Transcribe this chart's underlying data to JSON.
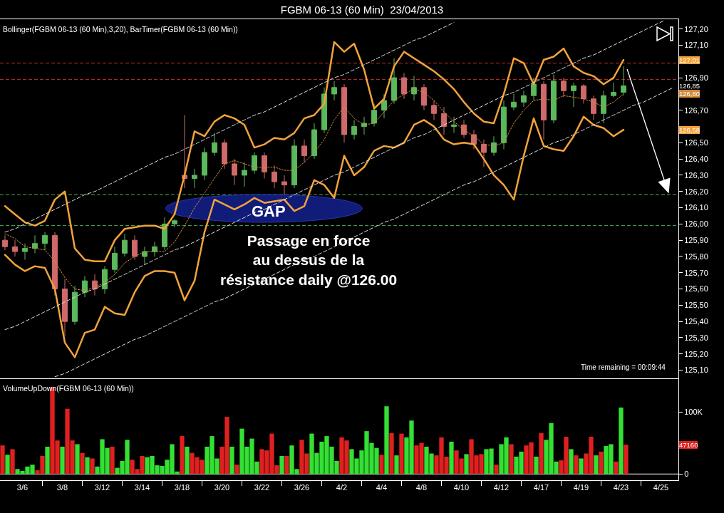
{
  "chart_data": [
    {
      "type": "candlestick",
      "title": "FGBM 06-13 (60 Min)  23/04/2013",
      "subtitle": "Bollinger(FGBM 06-13 (60 Min),3,20), BarTimer(FGBM 06-13 (60 Min))",
      "categories": [
        null,
        null,
        null,
        null,
        null,
        null,
        null,
        null,
        null,
        null,
        null,
        null,
        null,
        null,
        null,
        null,
        null,
        null,
        null,
        null,
        null,
        null,
        null,
        null,
        null,
        null,
        null,
        null,
        null,
        null,
        null,
        null,
        null,
        null,
        null,
        null,
        null,
        null,
        null,
        null,
        null,
        null,
        null,
        null,
        null,
        null,
        null,
        null,
        null,
        null,
        null,
        null,
        null,
        null,
        null,
        null,
        null,
        null,
        null,
        null,
        null,
        null,
        null,
        null,
        null,
        null,
        null,
        null
      ],
      "ohlc": [
        [
          125.9,
          125.93,
          125.84,
          125.86
        ],
        [
          125.86,
          125.9,
          125.8,
          125.83
        ],
        [
          125.83,
          125.88,
          125.78,
          125.85
        ],
        [
          125.85,
          125.93,
          125.82,
          125.88
        ],
        [
          125.88,
          125.95,
          125.84,
          125.93
        ],
        [
          125.93,
          125.95,
          125.56,
          125.6
        ],
        [
          125.6,
          125.66,
          125.31,
          125.4
        ],
        [
          125.4,
          125.62,
          125.38,
          125.58
        ],
        [
          125.58,
          125.68,
          125.55,
          125.65
        ],
        [
          125.65,
          125.69,
          125.56,
          125.6
        ],
        [
          125.6,
          125.74,
          125.57,
          125.72
        ],
        [
          125.72,
          125.86,
          125.7,
          125.82
        ],
        [
          125.82,
          125.94,
          125.8,
          125.9
        ],
        [
          125.9,
          125.93,
          125.78,
          125.8
        ],
        [
          125.8,
          125.86,
          125.75,
          125.83
        ],
        [
          125.83,
          125.89,
          125.8,
          125.86
        ],
        [
          125.86,
          126.04,
          125.84,
          126.0
        ],
        [
          126.0,
          126.03,
          125.98,
          126.02
        ],
        [
          126.3,
          126.67,
          126.22,
          126.28
        ],
        [
          126.28,
          126.34,
          126.22,
          126.3
        ],
        [
          126.3,
          126.47,
          126.27,
          126.44
        ],
        [
          126.44,
          126.56,
          126.42,
          126.5
        ],
        [
          126.5,
          126.52,
          126.34,
          126.37
        ],
        [
          126.37,
          126.4,
          126.24,
          126.3
        ],
        [
          126.3,
          126.38,
          126.23,
          126.33
        ],
        [
          126.33,
          126.44,
          126.31,
          126.42
        ],
        [
          126.42,
          126.44,
          126.28,
          126.32
        ],
        [
          126.32,
          126.36,
          126.22,
          126.26
        ],
        [
          126.26,
          126.3,
          126.18,
          126.24
        ],
        [
          126.24,
          126.52,
          126.22,
          126.48
        ],
        [
          126.48,
          126.52,
          126.38,
          126.42
        ],
        [
          126.42,
          126.62,
          126.4,
          126.58
        ],
        [
          126.58,
          126.84,
          126.56,
          126.8
        ],
        [
          126.8,
          126.88,
          126.76,
          126.84
        ],
        [
          126.84,
          126.86,
          126.5,
          126.55
        ],
        [
          126.55,
          126.64,
          126.52,
          126.6
        ],
        [
          126.6,
          126.66,
          126.55,
          126.62
        ],
        [
          126.62,
          126.74,
          126.6,
          126.7
        ],
        [
          126.7,
          126.8,
          126.65,
          126.76
        ],
        [
          126.76,
          127.02,
          126.74,
          126.9
        ],
        [
          126.9,
          126.93,
          126.77,
          126.8
        ],
        [
          126.8,
          126.91,
          126.76,
          126.84
        ],
        [
          126.84,
          126.86,
          126.7,
          126.73
        ],
        [
          126.73,
          126.76,
          126.64,
          126.68
        ],
        [
          126.68,
          126.72,
          126.55,
          126.6
        ],
        [
          126.6,
          126.66,
          126.56,
          126.61
        ],
        [
          126.61,
          126.64,
          126.53,
          126.55
        ],
        [
          126.55,
          126.58,
          126.46,
          126.49
        ],
        [
          126.49,
          126.52,
          126.35,
          126.44
        ],
        [
          126.44,
          126.54,
          126.42,
          126.5
        ],
        [
          126.5,
          126.76,
          126.46,
          126.72
        ],
        [
          126.72,
          126.8,
          126.7,
          126.75
        ],
        [
          126.75,
          126.82,
          126.72,
          126.79
        ],
        [
          126.79,
          126.9,
          126.76,
          126.86
        ],
        [
          126.86,
          126.88,
          126.52,
          126.64
        ],
        [
          126.64,
          126.92,
          126.62,
          126.88
        ],
        [
          126.88,
          126.9,
          126.78,
          126.82
        ],
        [
          126.82,
          126.87,
          126.72,
          126.85
        ],
        [
          126.85,
          126.86,
          126.74,
          126.77
        ],
        [
          126.77,
          126.79,
          126.64,
          126.68
        ],
        [
          126.68,
          126.82,
          126.62,
          126.79
        ],
        [
          126.79,
          126.87,
          126.78,
          126.81
        ],
        [
          126.81,
          126.97,
          126.79,
          126.85
        ],
        null,
        null,
        null,
        null,
        null
      ],
      "colors": [
        "#d06a6a",
        "#d06a6a",
        "#5cb85c",
        "#5cb85c",
        "#5cb85c",
        "#d06a6a",
        "#d06a6a",
        "#5cb85c",
        "#5cb85c",
        "#d06a6a",
        "#5cb85c",
        "#5cb85c",
        "#5cb85c",
        "#d06a6a",
        "#5cb85c",
        "#5cb85c",
        "#5cb85c",
        "#5cb85c",
        "#d06a6a",
        "#5cb85c",
        "#5cb85c",
        "#5cb85c",
        "#d06a6a",
        "#d06a6a",
        "#5cb85c",
        "#5cb85c",
        "#d06a6a",
        "#d06a6a",
        "#d06a6a",
        "#5cb85c",
        "#d06a6a",
        "#5cb85c",
        "#5cb85c",
        "#5cb85c",
        "#d06a6a",
        "#5cb85c",
        "#5cb85c",
        "#5cb85c",
        "#5cb85c",
        "#5cb85c",
        "#d06a6a",
        "#5cb85c",
        "#d06a6a",
        "#d06a6a",
        "#d06a6a",
        "#5cb85c",
        "#d06a6a",
        "#d06a6a",
        "#d06a6a",
        "#5cb85c",
        "#5cb85c",
        "#5cb85c",
        "#5cb85c",
        "#5cb85c",
        "#d06a6a",
        "#5cb85c",
        "#d06a6a",
        "#5cb85c",
        "#d06a6a",
        "#d06a6a",
        "#5cb85c",
        "#5cb85c",
        "#5cb85c",
        null,
        null,
        null,
        null,
        null
      ],
      "series": [
        {
          "type": "line",
          "color": "#f2a33a",
          "line_style": "solid",
          "values": [
            126.11,
            126.06,
            126.01,
            125.99,
            126.02,
            126.15,
            126.2,
            125.85,
            125.78,
            125.77,
            125.77,
            125.9,
            125.97,
            125.98,
            125.99,
            125.99,
            125.97,
            126.06,
            126.3,
            126.57,
            126.54,
            126.63,
            126.67,
            126.65,
            126.61,
            126.47,
            126.49,
            126.53,
            126.52,
            126.56,
            126.65,
            126.67,
            126.74,
            127.12,
            127.06,
            127.11,
            126.95,
            126.71,
            126.77,
            126.97,
            127.06,
            127.02,
            126.98,
            126.94,
            126.89,
            126.83,
            126.75,
            126.68,
            126.63,
            126.62,
            126.8,
            127.02,
            126.99,
            126.86,
            127.01,
            127.03,
            127.08,
            126.97,
            126.93,
            126.91,
            126.86,
            126.9,
            127.01,
            null,
            null,
            null,
            null,
            null
          ]
        },
        {
          "type": "line",
          "color": "#d08a36",
          "line_style": "dotted",
          "values": [
            125.94,
            125.91,
            125.86,
            125.85,
            125.84,
            125.77,
            125.67,
            125.6,
            125.59,
            125.61,
            125.64,
            125.69,
            125.76,
            125.8,
            125.83,
            125.83,
            125.83,
            125.89,
            125.99,
            126.1,
            126.19,
            126.28,
            126.37,
            126.39,
            126.37,
            126.35,
            126.35,
            126.35,
            126.33,
            126.33,
            126.38,
            126.44,
            126.52,
            126.64,
            126.72,
            126.65,
            126.61,
            126.62,
            126.69,
            126.76,
            126.8,
            126.83,
            126.81,
            126.76,
            126.69,
            126.63,
            126.58,
            126.54,
            126.49,
            126.48,
            126.5,
            126.62,
            126.7,
            126.76,
            126.77,
            126.76,
            126.79,
            126.78,
            126.77,
            126.75,
            126.72,
            126.75,
            126.8,
            null,
            null,
            null,
            null,
            null
          ]
        },
        {
          "type": "line",
          "color": "#f2a33a",
          "line_style": "solid",
          "values": [
            125.81,
            125.75,
            125.71,
            125.74,
            125.73,
            125.6,
            125.27,
            125.18,
            125.33,
            125.35,
            125.49,
            125.45,
            125.44,
            125.58,
            125.68,
            125.71,
            125.71,
            125.7,
            125.53,
            125.65,
            125.95,
            126.15,
            126.12,
            126.09,
            126.12,
            126.16,
            126.13,
            126.14,
            126.15,
            126.08,
            126.11,
            126.27,
            126.24,
            126.16,
            126.42,
            126.3,
            126.35,
            126.45,
            126.48,
            126.47,
            126.5,
            126.61,
            126.64,
            126.6,
            126.52,
            126.49,
            126.5,
            126.49,
            126.4,
            126.3,
            126.24,
            126.15,
            126.42,
            126.65,
            126.48,
            126.46,
            126.45,
            126.54,
            126.66,
            126.61,
            126.59,
            126.54,
            126.58,
            null,
            null,
            null,
            null,
            null
          ]
        },
        {
          "type": "line",
          "color": "#d9d9d9",
          "line_style": "dashed",
          "values": [
            125.95,
            125.97,
            126.0,
            126.03,
            126.06,
            126.09,
            126.12,
            126.15,
            126.18,
            126.2,
            126.23,
            126.26,
            126.29,
            126.32,
            126.35,
            126.38,
            126.41,
            126.43,
            126.46,
            126.49,
            126.52,
            126.55,
            126.58,
            126.61,
            126.64,
            126.67,
            126.69,
            126.72,
            126.75,
            126.78,
            126.81,
            126.84,
            126.87,
            126.9,
            126.92,
            126.95,
            126.98,
            127.01,
            127.04,
            127.07,
            127.1,
            127.13,
            127.15,
            127.18,
            127.21,
            127.24,
            null,
            null,
            null,
            null,
            null,
            null,
            null,
            null,
            null,
            null,
            null,
            null,
            null,
            null,
            null,
            null,
            null,
            null,
            null,
            null,
            null,
            null
          ]
        },
        {
          "type": "line",
          "color": "#d9d9d9",
          "line_style": "dashed",
          "values": [
            125.35,
            125.37,
            125.4,
            125.43,
            125.46,
            125.49,
            125.52,
            125.55,
            125.58,
            125.6,
            125.63,
            125.66,
            125.69,
            125.72,
            125.75,
            125.78,
            125.81,
            125.84,
            125.86,
            125.89,
            125.92,
            125.95,
            125.98,
            126.01,
            126.04,
            126.07,
            126.09,
            126.12,
            126.15,
            126.18,
            126.21,
            126.24,
            126.27,
            126.3,
            126.32,
            126.35,
            126.38,
            126.41,
            126.44,
            126.47,
            126.5,
            126.53,
            126.55,
            126.58,
            126.61,
            126.64,
            126.67,
            126.7,
            126.73,
            126.76,
            126.79,
            126.81,
            126.84,
            126.87,
            126.9,
            126.93,
            126.96,
            126.99,
            127.02,
            127.04,
            127.07,
            127.1,
            127.13,
            127.16,
            127.19,
            127.22,
            127.25,
            null
          ]
        },
        {
          "type": "line",
          "color": "#d9d9d9",
          "line_style": "dashed",
          "values": [
            null,
            null,
            null,
            null,
            null,
            125.06,
            125.08,
            125.11,
            125.14,
            125.17,
            125.2,
            125.23,
            125.26,
            125.29,
            125.31,
            125.34,
            125.37,
            125.4,
            125.43,
            125.46,
            125.49,
            125.52,
            125.54,
            125.57,
            125.6,
            125.63,
            125.66,
            125.69,
            125.72,
            125.75,
            125.78,
            125.8,
            125.83,
            125.86,
            125.89,
            125.92,
            125.95,
            125.98,
            126.01,
            126.03,
            126.06,
            126.09,
            126.12,
            126.15,
            126.18,
            126.21,
            126.24,
            126.26,
            126.29,
            126.32,
            126.35,
            126.38,
            126.41,
            126.44,
            126.47,
            126.5,
            126.52,
            126.55,
            126.58,
            126.61,
            126.64,
            126.67,
            126.7,
            126.73,
            126.75,
            126.78,
            126.81,
            126.84
          ]
        }
      ],
      "ref_lines": [
        {
          "axis": "y",
          "value": 126.99,
          "color": "#c8322c",
          "line_style": "dashed"
        },
        {
          "axis": "y",
          "value": 126.89,
          "color": "#c8322c",
          "line_style": "dashed"
        },
        {
          "axis": "y",
          "value": 126.18,
          "color": "#4caf50",
          "line_style": "dashed"
        },
        {
          "axis": "y",
          "value": 125.99,
          "color": "#4caf50",
          "line_style": "dashed"
        }
      ],
      "annotations": [
        "GAP",
        "Passage en force\nau dessus de la\nrésistance daily @126.00",
        "Time remaining = 00:09:44",
        {
          "text": "127,01",
          "y": 127.01
        },
        {
          "text": "126,85",
          "y": 126.85
        },
        {
          "text": "126,80",
          "y": 126.8
        },
        {
          "text": "126,58",
          "y": 126.58
        }
      ],
      "ylim": [
        125.05,
        127.26
      ],
      "yticks": [
        {
          "value": 125.1,
          "label": "125,10"
        },
        {
          "value": 125.2,
          "label": "125,20"
        },
        {
          "value": 125.3,
          "label": "125,30"
        },
        {
          "value": 125.4,
          "label": "125,40"
        },
        {
          "value": 125.5,
          "label": "125,50"
        },
        {
          "value": 125.6,
          "label": "125,60"
        },
        {
          "value": 125.7,
          "label": "125,70"
        },
        {
          "value": 125.8,
          "label": "125,80"
        },
        {
          "value": 125.9,
          "label": "125,90"
        },
        {
          "value": 126.0,
          "label": "126,00"
        },
        {
          "value": 126.1,
          "label": "126,10"
        },
        {
          "value": 126.2,
          "label": "126,20"
        },
        {
          "value": 126.3,
          "label": "126,30"
        },
        {
          "value": 126.4,
          "label": "126,40"
        },
        {
          "value": 126.5,
          "label": "126,50"
        },
        {
          "value": 126.6,
          "label": null
        },
        {
          "value": 126.7,
          "label": "126,70"
        },
        {
          "value": 126.8,
          "label": null
        },
        {
          "value": 126.9,
          "label": "126,90"
        },
        {
          "value": 127.0,
          "label": null
        },
        {
          "value": 127.1,
          "label": "127,10"
        },
        {
          "value": 127.2,
          "label": "127,20"
        }
      ],
      "tick_labels": "y",
      "grid": false
    },
    {
      "type": "bar",
      "subtitle": "VolumeUpDown(FGBM 06-13 (60 Min))",
      "categories": [
        null,
        null,
        null,
        null,
        "3/6",
        null,
        null,
        null,
        null,
        null,
        null,
        null,
        "3/8",
        null,
        null,
        null,
        null,
        null,
        null,
        null,
        "3/12",
        null,
        null,
        null,
        null,
        null,
        null,
        null,
        "3/14",
        null,
        null,
        null,
        null,
        null,
        null,
        null,
        "3/18",
        null,
        null,
        null,
        null,
        null,
        null,
        null,
        "3/20",
        null,
        null,
        null,
        null,
        null,
        null,
        null,
        "3/22",
        null,
        null,
        null,
        null,
        null,
        null,
        null,
        "3/26",
        null,
        null,
        null,
        null,
        null,
        null,
        null,
        "4/2",
        null,
        null,
        null,
        null,
        null,
        null,
        null,
        "4/4",
        null,
        null,
        null,
        null,
        null,
        null,
        null,
        "4/8",
        null,
        null,
        null,
        null,
        null,
        null,
        null,
        "4/10",
        null,
        null,
        null,
        null,
        null,
        null,
        null,
        "4/12",
        null,
        null,
        null,
        null,
        null,
        null,
        null,
        "4/17",
        null,
        null,
        null,
        null,
        null,
        null,
        null,
        "4/19",
        null,
        null,
        null,
        null,
        null,
        null,
        null,
        "4/23",
        null,
        null,
        null,
        null,
        null,
        null,
        null,
        "4/25",
        null,
        null,
        null
      ],
      "values": [
        46000,
        31000,
        40000,
        8000,
        5000,
        12000,
        15000,
        6000,
        29000,
        44000,
        140000,
        54000,
        44000,
        105000,
        54000,
        48000,
        34000,
        27000,
        25000,
        12000,
        56000,
        42000,
        44000,
        10000,
        21000,
        55000,
        23000,
        8000,
        29000,
        27000,
        29000,
        14000,
        13000,
        23000,
        48000,
        4000,
        61000,
        44000,
        34000,
        27000,
        23000,
        44000,
        61000,
        25000,
        44000,
        92000,
        44000,
        15000,
        73000,
        44000,
        57000,
        20000,
        40000,
        38000,
        65000,
        14000,
        29000,
        29000,
        46000,
        8000,
        55000,
        33000,
        65000,
        34000,
        52000,
        61000,
        44000,
        21000,
        59000,
        54000,
        40000,
        25000,
        38000,
        69000,
        50000,
        42000,
        31000,
        109000,
        66000,
        30000,
        65000,
        59000,
        86000,
        46000,
        50000,
        44000,
        33000,
        30000,
        59000,
        28000,
        52000,
        38000,
        25000,
        32000,
        56000,
        30000,
        32000,
        40000,
        41000,
        15000,
        48000,
        59000,
        48000,
        28000,
        36000,
        46000,
        51000,
        28000,
        66000,
        55000,
        82000,
        20000,
        22000,
        60000,
        40000,
        30000,
        25000,
        33000,
        60000,
        30000,
        36000,
        45000,
        48000,
        20000,
        107000,
        47160,
        null,
        null,
        null,
        null,
        null,
        null,
        null,
        null,
        null,
        null
      ],
      "colors": [
        "#e02020",
        "#33e033",
        "#e02020",
        "#33e033",
        "#33e033",
        "#33e033",
        "#33e033",
        "#e02020",
        "#e02020",
        "#33e033",
        "#e02020",
        "#e02020",
        "#33e033",
        "#e02020",
        "#e02020",
        "#33e033",
        "#e02020",
        "#33e033",
        "#e02020",
        "#33e033",
        "#33e033",
        "#33e033",
        "#e02020",
        "#33e033",
        "#33e033",
        "#33e033",
        "#e02020",
        "#e02020",
        "#e02020",
        "#33e033",
        "#33e033",
        "#33e033",
        "#33e033",
        "#33e033",
        "#33e033",
        "#33e033",
        "#e02020",
        "#33e033",
        "#e02020",
        "#e02020",
        "#e02020",
        "#33e033",
        "#33e033",
        "#33e033",
        "#e02020",
        "#e02020",
        "#33e033",
        "#e02020",
        "#33e033",
        "#33e033",
        "#33e033",
        "#33e033",
        "#e02020",
        "#e02020",
        "#e02020",
        "#e02020",
        "#33e033",
        "#e02020",
        "#33e033",
        "#33e033",
        "#e02020",
        "#e02020",
        "#33e033",
        "#33e033",
        "#33e033",
        "#33e033",
        "#33e033",
        "#33e033",
        "#e02020",
        "#e02020",
        "#33e033",
        "#33e033",
        "#33e033",
        "#33e033",
        "#33e033",
        "#33e033",
        "#e02020",
        "#33e033",
        "#e02020",
        "#33e033",
        "#e02020",
        "#33e033",
        "#33e033",
        "#e02020",
        "#e02020",
        "#33e033",
        "#33e033",
        "#e02020",
        "#e02020",
        "#e02020",
        "#33e033",
        "#e02020",
        "#e02020",
        "#33e033",
        "#e02020",
        "#e02020",
        "#e02020",
        "#33e033",
        "#33e033",
        "#e02020",
        "#33e033",
        "#33e033",
        "#e02020",
        "#33e033",
        "#33e033",
        "#e02020",
        "#e02020",
        "#33e033",
        "#e02020",
        "#33e033",
        "#33e033",
        "#33e033",
        "#e02020",
        "#e02020",
        "#33e033",
        "#e02020",
        "#33e033",
        "#e02020",
        "#e02020",
        "#33e033",
        "#e02020",
        "#33e033",
        "#33e033",
        "#e02020",
        "#33e033",
        "#e02020",
        null,
        null,
        null,
        null,
        null,
        null,
        null,
        null,
        null,
        null
      ],
      "ref_lines": [
        {
          "axis": "y",
          "value": 0,
          "color": "#ffffff",
          "line_style": "solid"
        }
      ],
      "annotations": [
        {
          "text": "47160",
          "y": 47160
        }
      ],
      "ylim": [
        -10000,
        154000
      ],
      "yticks": [
        0,
        {
          "value": 100000,
          "label": "100K"
        }
      ],
      "grid": false
    }
  ]
}
